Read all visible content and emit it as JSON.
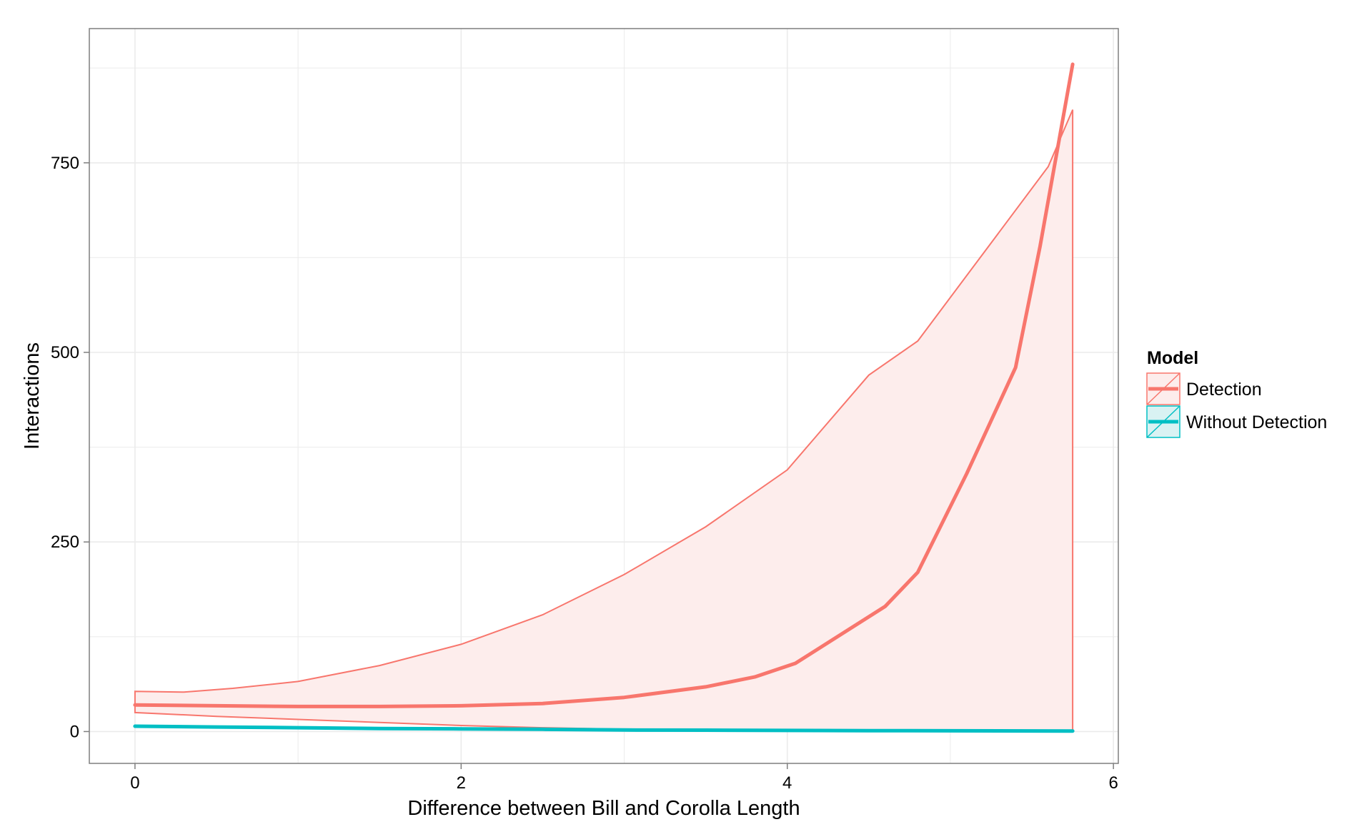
{
  "chart_data": {
    "type": "line",
    "xlabel": "Difference between Bill and Corolla Length",
    "ylabel": "Interactions",
    "xlim": [
      -0.28,
      6.03
    ],
    "ylim": [
      -42,
      927
    ],
    "x_ticks": [
      0,
      2,
      4,
      6
    ],
    "y_ticks": [
      0,
      250,
      500,
      750
    ],
    "x_tick_labels": [
      "0",
      "2",
      "4",
      "6"
    ],
    "y_tick_labels": [
      "0",
      "250",
      "500",
      "750"
    ],
    "grid": true,
    "legend": {
      "title": "Model",
      "placement": "right"
    },
    "colors": {
      "detection": "#F8766D",
      "without_detection": "#00BFC4",
      "ribbon_fill": "#FDEDEC",
      "grid": "#ebebeb",
      "panel_border": "#7f7f7f"
    },
    "series": [
      {
        "name": "Detection",
        "color": "#F8766D",
        "points": [
          [
            0,
            35
          ],
          [
            0.5,
            34
          ],
          [
            1,
            33
          ],
          [
            1.5,
            33
          ],
          [
            2,
            34
          ],
          [
            2.5,
            37
          ],
          [
            3,
            45
          ],
          [
            3.5,
            59
          ],
          [
            3.8,
            72
          ],
          [
            4.05,
            90
          ],
          [
            4.6,
            165
          ],
          [
            4.8,
            210
          ],
          [
            5.1,
            340
          ],
          [
            5.4,
            480
          ],
          [
            5.55,
            640
          ],
          [
            5.75,
            880
          ]
        ],
        "band_upper": [
          [
            0,
            53
          ],
          [
            0.3,
            52
          ],
          [
            0.6,
            57
          ],
          [
            1,
            66
          ],
          [
            1.5,
            87
          ],
          [
            2,
            115
          ],
          [
            2.5,
            154
          ],
          [
            3,
            207
          ],
          [
            3.5,
            270
          ],
          [
            4,
            345
          ],
          [
            4.5,
            470
          ],
          [
            4.8,
            515
          ],
          [
            5.2,
            630
          ],
          [
            5.6,
            745
          ],
          [
            5.75,
            820
          ]
        ],
        "band_lower": [
          [
            0,
            25
          ],
          [
            0.5,
            20
          ],
          [
            1,
            16
          ],
          [
            1.5,
            12
          ],
          [
            2,
            8
          ],
          [
            2.5,
            5
          ],
          [
            3,
            3
          ],
          [
            3.5,
            2
          ],
          [
            4,
            1
          ],
          [
            4.5,
            0.5
          ],
          [
            5,
            0.3
          ],
          [
            5.5,
            0.2
          ],
          [
            5.75,
            0.2
          ]
        ]
      },
      {
        "name": "Without Detection",
        "color": "#00BFC4",
        "points": [
          [
            0,
            7
          ],
          [
            0.5,
            6
          ],
          [
            1,
            5
          ],
          [
            1.5,
            4
          ],
          [
            2,
            3.5
          ],
          [
            2.5,
            3
          ],
          [
            3,
            2
          ],
          [
            3.5,
            1.8
          ],
          [
            4,
            1.5
          ],
          [
            4.5,
            1.2
          ],
          [
            5,
            1
          ],
          [
            5.5,
            0.8
          ],
          [
            5.75,
            0.7
          ]
        ]
      }
    ]
  }
}
